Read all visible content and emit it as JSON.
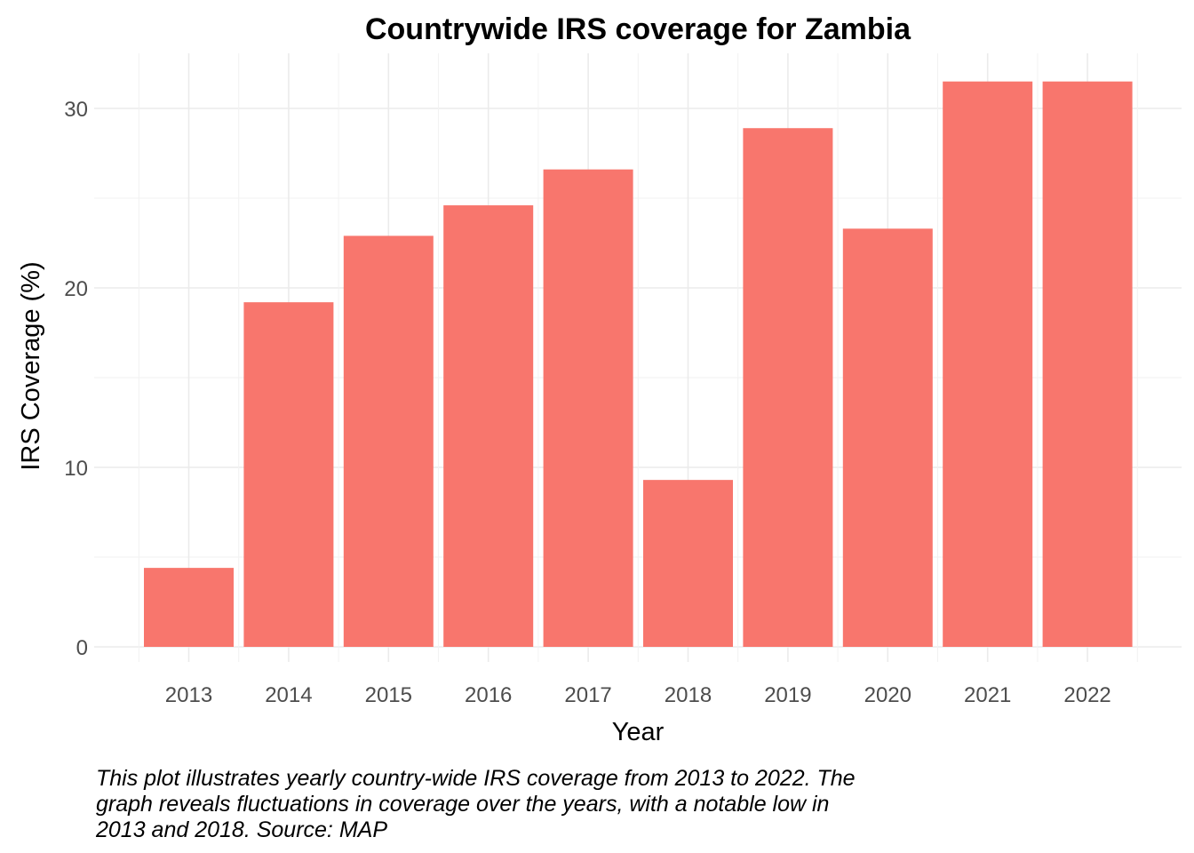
{
  "chart_data": {
    "type": "bar",
    "title": "Countrywide IRS coverage for Zambia",
    "xlabel": "Year",
    "ylabel": "IRS Coverage (%)",
    "categories": [
      "2013",
      "2014",
      "2015",
      "2016",
      "2017",
      "2018",
      "2019",
      "2020",
      "2021",
      "2022"
    ],
    "values": [
      4.4,
      19.2,
      22.9,
      24.6,
      26.6,
      9.3,
      28.9,
      23.3,
      31.5,
      31.5
    ],
    "ylim": [
      0,
      33
    ],
    "yticks": [
      "0",
      "10",
      "20",
      "30"
    ],
    "grid": true,
    "legend": "none",
    "bar_color": "#F8766D"
  },
  "caption": {
    "lines": [
      "This plot illustrates yearly country-wide IRS coverage from 2013 to 2022. The",
      "graph reveals fluctuations in coverage over the years, with a notable low in",
      "2013 and 2018. Source: MAP"
    ]
  }
}
